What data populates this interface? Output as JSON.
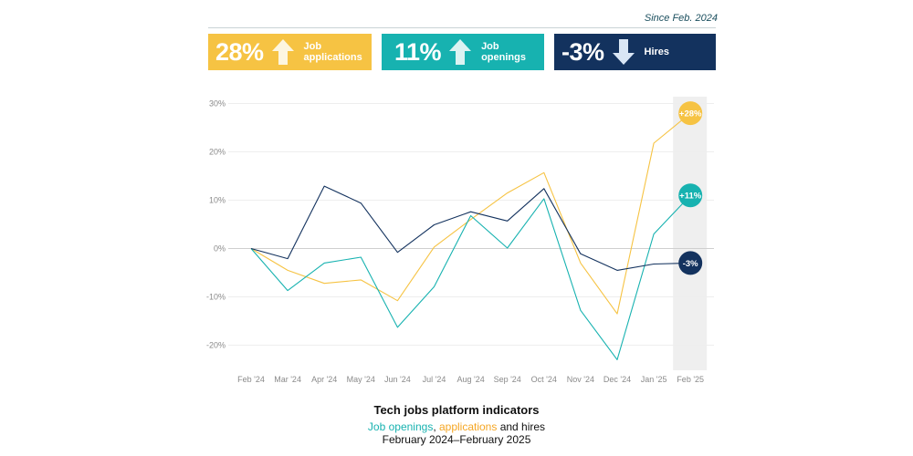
{
  "since_label": "Since Feb. 2024",
  "kpis": {
    "applications": {
      "value": "28%",
      "label_line1": "Job",
      "label_line2": "applications",
      "direction": "up-arrow-icon",
      "color": "#f6c343"
    },
    "openings": {
      "value": "11%",
      "label_line1": "Job",
      "label_line2": "openings",
      "direction": "up-arrow-icon",
      "color": "#17b2b0"
    },
    "hires": {
      "value": "-3%",
      "label_line1": "Hires",
      "direction": "down-arrow-icon",
      "color": "#13325e"
    }
  },
  "chart_data": {
    "type": "line",
    "x": [
      "Feb '24",
      "Mar '24",
      "Apr '24",
      "May '24",
      "Jun '24",
      "Jul '24",
      "Aug '24",
      "Sep '24",
      "Oct '24",
      "Nov '24",
      "Dec '24",
      "Jan '25",
      "Feb '25"
    ],
    "y_ticks": [
      "30%",
      "20%",
      "10%",
      "0%",
      "-10%",
      "-20%"
    ],
    "ylim": [
      -25,
      30
    ],
    "grid": true,
    "highlight_last_column": true,
    "series": [
      {
        "key": "applications",
        "color": "#f6c343",
        "values": [
          0,
          -4.5,
          -7.2,
          -6.5,
          -10.8,
          0.3,
          6.0,
          11.5,
          15.7,
          -3.0,
          -13.5,
          21.8,
          28
        ]
      },
      {
        "key": "openings",
        "color": "#17b2b0",
        "values": [
          0,
          -8.7,
          -3.0,
          -1.8,
          -16.3,
          -7.9,
          6.8,
          0.1,
          10.3,
          -12.8,
          -23.0,
          3.0,
          11
        ]
      },
      {
        "key": "hires",
        "color": "#13325e",
        "values": [
          0,
          -2.1,
          12.9,
          9.4,
          -0.8,
          4.9,
          7.6,
          5.7,
          12.4,
          -1.1,
          -4.5,
          -3.2,
          -3
        ]
      }
    ],
    "end_labels": [
      {
        "series": "applications",
        "text": "+28%",
        "color": "#f6c343"
      },
      {
        "series": "openings",
        "text": "+11%",
        "color": "#17b2b0"
      },
      {
        "series": "hires",
        "text": "-3%",
        "color": "#13325e"
      }
    ]
  },
  "caption": {
    "title": "Tech jobs platform indicators",
    "openings_word": "Job openings",
    "comma": ", ",
    "applications_word": "applications",
    "and_hires": " and hires",
    "date_range": "February 2024–February 2025"
  }
}
